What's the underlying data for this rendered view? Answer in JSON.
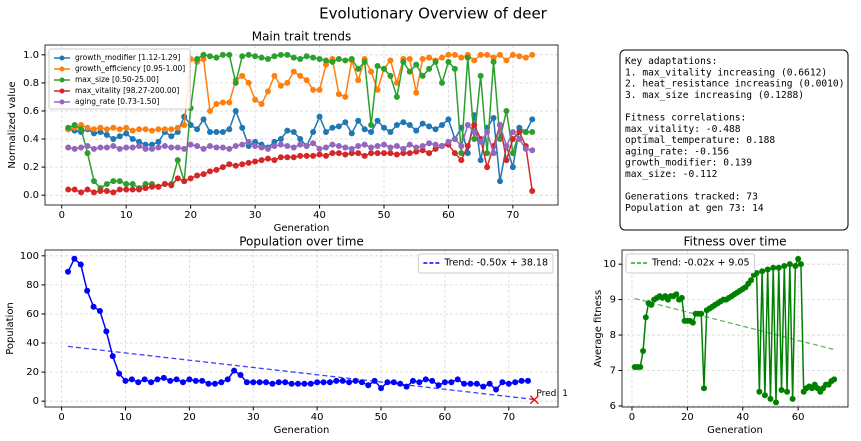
{
  "figure_title": "Evolutionary Overview of deer",
  "chart_data": [
    {
      "type": "line",
      "title": "Main trait trends",
      "xlabel": "Generation",
      "ylabel": "Normalized value",
      "x": [
        1,
        2,
        3,
        4,
        5,
        6,
        7,
        8,
        9,
        10,
        11,
        12,
        13,
        14,
        15,
        16,
        17,
        18,
        19,
        20,
        21,
        22,
        23,
        24,
        25,
        26,
        27,
        28,
        29,
        30,
        31,
        32,
        33,
        34,
        35,
        36,
        37,
        38,
        39,
        40,
        41,
        42,
        43,
        44,
        45,
        46,
        47,
        48,
        49,
        50,
        51,
        52,
        53,
        54,
        55,
        56,
        57,
        58,
        59,
        60,
        61,
        62,
        63,
        64,
        65,
        66,
        67,
        68,
        69,
        70,
        71,
        72,
        73
      ],
      "series": [
        {
          "name": "growth_modifier [1.12-1.29]",
          "color": "#1f77b4",
          "values": [
            0.47,
            0.46,
            0.45,
            0.47,
            0.44,
            0.45,
            0.43,
            0.4,
            0.42,
            0.44,
            0.4,
            0.38,
            0.36,
            0.36,
            0.38,
            0.45,
            0.42,
            0.45,
            0.56,
            0.5,
            0.47,
            0.54,
            0.45,
            0.45,
            0.45,
            0.47,
            0.6,
            0.48,
            0.35,
            0.38,
            0.36,
            0.34,
            0.38,
            0.4,
            0.46,
            0.45,
            0.4,
            0.35,
            0.45,
            0.56,
            0.45,
            0.48,
            0.49,
            0.52,
            0.44,
            0.53,
            0.47,
            0.45,
            0.53,
            0.48,
            0.45,
            0.5,
            0.52,
            0.5,
            0.46,
            0.51,
            0.49,
            0.47,
            0.5,
            0.54,
            0.4,
            0.48,
            0.3,
            0.57,
            0.25,
            0.48,
            0.55,
            0.1,
            0.35,
            0.2,
            0.48,
            0.45,
            0.54
          ]
        },
        {
          "name": "growth_efficiency [0.95-1.00]",
          "color": "#ff7f0e",
          "values": [
            0.47,
            0.48,
            0.5,
            0.48,
            0.47,
            0.48,
            0.47,
            0.48,
            0.47,
            0.48,
            0.46,
            0.47,
            0.47,
            0.46,
            0.47,
            0.47,
            0.47,
            0.48,
            0.5,
            0.97,
            0.95,
            0.97,
            0.6,
            0.65,
            0.66,
            0.66,
            0.82,
            0.85,
            0.8,
            0.68,
            0.65,
            0.74,
            0.85,
            0.78,
            0.8,
            0.88,
            0.85,
            0.82,
            0.75,
            0.75,
            0.93,
            0.97,
            0.72,
            0.7,
            0.96,
            0.82,
            0.97,
            0.88,
            0.75,
            0.9,
            0.96,
            0.8,
            0.97,
            0.97,
            0.73,
            0.97,
            0.98,
            0.96,
            0.98,
            1.0,
            1.0,
            0.98,
            1.0,
            0.96,
            1.0,
            1.0,
            0.98,
            1.0,
            0.96,
            1.0,
            0.99,
            0.98,
            1.0
          ]
        },
        {
          "name": "max_size [0.50-25.00]",
          "color": "#2ca02c",
          "values": [
            0.48,
            0.5,
            0.47,
            0.3,
            0.1,
            0.05,
            0.08,
            0.1,
            0.1,
            0.08,
            0.08,
            0.05,
            0.08,
            0.08,
            0.06,
            0.08,
            0.08,
            0.25,
            0.1,
            0.62,
            0.97,
            1.0,
            0.99,
            0.98,
            1.0,
            1.0,
            0.8,
            0.99,
            1.0,
            0.99,
            0.98,
            0.97,
            0.99,
            1.0,
            1.0,
            0.98,
            0.97,
            0.99,
            0.98,
            0.97,
            0.96,
            0.95,
            0.97,
            0.96,
            0.97,
            0.9,
            0.95,
            0.5,
            0.92,
            0.9,
            0.85,
            0.7,
            0.95,
            0.88,
            0.93,
            0.85,
            0.9,
            0.95,
            0.8,
            0.95,
            0.9,
            0.3,
            0.98,
            0.4,
            0.85,
            0.3,
            0.95,
            0.4,
            0.6,
            0.3,
            0.45,
            0.45,
            0.45
          ]
        },
        {
          "name": "max_vitality [98.27-200.00]",
          "color": "#d62728",
          "values": [
            0.04,
            0.04,
            0.02,
            0.04,
            0.02,
            0.03,
            0.03,
            0.02,
            0.04,
            0.04,
            0.04,
            0.04,
            0.05,
            0.06,
            0.06,
            0.08,
            0.07,
            0.12,
            0.1,
            0.12,
            0.14,
            0.15,
            0.17,
            0.18,
            0.2,
            0.22,
            0.21,
            0.22,
            0.23,
            0.24,
            0.25,
            0.26,
            0.25,
            0.27,
            0.27,
            0.27,
            0.28,
            0.28,
            0.28,
            0.29,
            0.28,
            0.3,
            0.3,
            0.29,
            0.3,
            0.3,
            0.28,
            0.3,
            0.3,
            0.3,
            0.3,
            0.29,
            0.3,
            0.3,
            0.31,
            0.32,
            0.3,
            0.33,
            0.35,
            0.36,
            0.3,
            0.25,
            0.35,
            0.5,
            0.4,
            0.2,
            0.35,
            0.5,
            0.25,
            0.4,
            0.45,
            0.35,
            0.03
          ]
        },
        {
          "name": "aging_rate [0.73-1.50]",
          "color": "#9467bd",
          "values": [
            0.34,
            0.33,
            0.34,
            0.35,
            0.33,
            0.34,
            0.34,
            0.35,
            0.33,
            0.34,
            0.34,
            0.35,
            0.33,
            0.33,
            0.34,
            0.35,
            0.34,
            0.34,
            0.33,
            0.36,
            0.35,
            0.33,
            0.35,
            0.34,
            0.34,
            0.33,
            0.35,
            0.36,
            0.38,
            0.35,
            0.34,
            0.33,
            0.35,
            0.36,
            0.35,
            0.34,
            0.36,
            0.35,
            0.37,
            0.33,
            0.34,
            0.36,
            0.35,
            0.34,
            0.33,
            0.35,
            0.36,
            0.34,
            0.35,
            0.36,
            0.34,
            0.35,
            0.33,
            0.36,
            0.34,
            0.35,
            0.37,
            0.36,
            0.35,
            0.38,
            0.4,
            0.35,
            0.5,
            0.45,
            0.38,
            0.45,
            0.3,
            0.5,
            0.35,
            0.45,
            0.4,
            0.33,
            0.32
          ]
        }
      ],
      "xlim": [
        -2.6,
        77.0
      ],
      "ylim": [
        -0.07,
        1.07
      ],
      "xticks": [
        0,
        10,
        20,
        30,
        40,
        50,
        60,
        70
      ],
      "yticks": [
        {
          "value": 0,
          "label": "0.0"
        },
        {
          "value": 0.2,
          "label": "0.2"
        },
        {
          "value": 0.4,
          "label": "0.4"
        },
        {
          "value": 0.6,
          "label": "0.6"
        },
        {
          "value": 0.8,
          "label": "0.8"
        },
        {
          "value": 1,
          "label": "1.0"
        }
      ],
      "grid": true,
      "legend": "upper left"
    },
    {
      "type": "line",
      "title": "Population over time",
      "xlabel": "Generation",
      "ylabel": "Population",
      "x": [
        1,
        2,
        3,
        4,
        5,
        6,
        7,
        8,
        9,
        10,
        11,
        12,
        13,
        14,
        15,
        16,
        17,
        18,
        19,
        20,
        21,
        22,
        23,
        24,
        25,
        26,
        27,
        28,
        29,
        30,
        31,
        32,
        33,
        34,
        35,
        36,
        37,
        38,
        39,
        40,
        41,
        42,
        43,
        44,
        45,
        46,
        47,
        48,
        49,
        50,
        51,
        52,
        53,
        54,
        55,
        56,
        57,
        58,
        59,
        60,
        61,
        62,
        63,
        64,
        65,
        66,
        67,
        68,
        69,
        70,
        71,
        72,
        73
      ],
      "series": [
        {
          "color": "#0000ff",
          "values": [
            89,
            98,
            94,
            76,
            65,
            62,
            48,
            31,
            19,
            14,
            15,
            13,
            15,
            13,
            15,
            16,
            14,
            15,
            13,
            15,
            14,
            14,
            12,
            12,
            13,
            15,
            21,
            18,
            13,
            13,
            13,
            13,
            12,
            13,
            13,
            12,
            12,
            12,
            12,
            13,
            13,
            13,
            14,
            14,
            13,
            14,
            13,
            11,
            14,
            9,
            13,
            13,
            12,
            10,
            14,
            13,
            15,
            14,
            11,
            13,
            13,
            15,
            12,
            12,
            12,
            10,
            12,
            8,
            13,
            12,
            13,
            14,
            14
          ]
        }
      ],
      "trend": {
        "label": "Trend: -0.50x + 38.18",
        "slope": -0.5,
        "intercept": 38.18,
        "color": "#0000ff"
      },
      "prediction": {
        "x": 74,
        "value": 1,
        "label": "Pred: 1",
        "color": "#ff0000"
      },
      "xlim": [
        -2.6,
        77.7
      ],
      "ylim": [
        -4,
        104
      ],
      "xticks": [
        0,
        10,
        20,
        30,
        40,
        50,
        60,
        70
      ],
      "yticks": [
        0,
        20,
        40,
        60,
        80,
        100
      ],
      "grid": true,
      "legend": "upper right"
    },
    {
      "type": "line",
      "title": "Fitness over time",
      "xlabel": "Generation",
      "ylabel": "Average fitness",
      "x": [
        1,
        2,
        3,
        4,
        5,
        6,
        7,
        8,
        9,
        10,
        11,
        12,
        13,
        14,
        15,
        16,
        17,
        18,
        19,
        20,
        21,
        22,
        23,
        24,
        25,
        26,
        27,
        28,
        29,
        30,
        31,
        32,
        33,
        34,
        35,
        36,
        37,
        38,
        39,
        40,
        41,
        42,
        43,
        44,
        45,
        46,
        47,
        48,
        49,
        50,
        51,
        52,
        53,
        54,
        55,
        56,
        57,
        58,
        59,
        60,
        61,
        62,
        63,
        64,
        65,
        66,
        67,
        68,
        69,
        70,
        71,
        72,
        73
      ],
      "series": [
        {
          "color": "#008000",
          "values": [
            7.1,
            7.1,
            7.1,
            7.55,
            8.5,
            8.9,
            8.85,
            9.0,
            9.05,
            9.1,
            9.05,
            9.1,
            9.0,
            9.1,
            9.1,
            9.15,
            9.0,
            9.05,
            8.4,
            8.4,
            8.4,
            8.35,
            8.6,
            8.6,
            8.6,
            6.5,
            8.7,
            8.75,
            8.8,
            8.85,
            8.9,
            8.95,
            9.0,
            9.0,
            9.05,
            9.1,
            9.15,
            9.2,
            9.25,
            9.3,
            9.35,
            9.45,
            9.55,
            9.7,
            9.75,
            6.4,
            9.8,
            6.3,
            9.85,
            6.2,
            9.9,
            6.1,
            9.9,
            6.45,
            9.95,
            6.4,
            10.0,
            6.2,
            9.95,
            10.15,
            10.0,
            6.4,
            6.5,
            6.55,
            6.5,
            6.6,
            6.5,
            6.4,
            6.5,
            6.6,
            6.6,
            6.7,
            6.75
          ]
        }
      ],
      "trend": {
        "label": "Trend: -0.02x + 9.05",
        "slope": -0.02,
        "intercept": 9.05,
        "color": "#2ca02c"
      },
      "xlim": [
        -3.6,
        78
      ],
      "ylim": [
        5.97,
        10.4
      ],
      "xticks": [
        0,
        20,
        40,
        60
      ],
      "yticks": [
        6,
        7,
        8,
        9,
        10
      ],
      "grid": true,
      "legend": "upper left"
    }
  ],
  "text_box": {
    "sections": [
      [
        "Key adaptations:",
        "1. max_vitality increasing (0.6612)",
        "2. heat_resistance increasing (0.0010)",
        "3. max_size increasing (0.1288)"
      ],
      [
        "Fitness correlations:",
        "max_vitality: -0.488",
        "optimal_temperature: 0.188",
        "aging_rate: -0.156",
        "growth_modifier: 0.139",
        "max_size: -0.112"
      ],
      [
        "Generations tracked: 73",
        "Population at gen 73: 14"
      ]
    ]
  }
}
